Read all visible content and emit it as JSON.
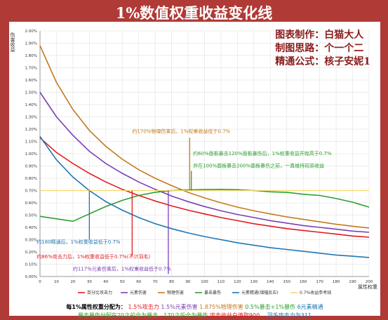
{
  "page": {
    "title": "1%数值权重收益变化线",
    "credits": [
      "图表制作：白猫大人",
      "制图思路：个一个二",
      "精通公式：核子安妮1"
    ],
    "footer": {
      "label": "每1%属性权重分配为：",
      "items": [
        {
          "text": "1.5%攻击力",
          "color": "#e41a1c"
        },
        {
          "text": "1.5%元素伤害",
          "color": "#7b3fb5"
        },
        {
          "text": "1.875%物理伤害",
          "color": "#c47a1e"
        },
        {
          "text": "0.5%暴击+1%暴伤",
          "color": "#2ca02c"
        },
        {
          "text": "6元素精通",
          "color": "#1f77b4"
        }
      ],
      "line2": [
        {
          "text": "暴击暴伤分配在20之前全为暴击，170之后全为暴伤 ",
          "color": "#2ca02c"
        },
        {
          "text": "攻击收益白值取900，",
          "color": "#e41a1c"
        },
        {
          "text": "羽毛攻击力为311",
          "color": "#1f77b4"
        }
      ]
    }
  },
  "chart_data": {
    "type": "line",
    "ylabel": "伤害收益",
    "xlabel": "属性权重",
    "xlim": [
      0,
      200
    ],
    "ylim": [
      0,
      2.0
    ],
    "x_ticks": [
      0,
      10,
      20,
      30,
      40,
      50,
      60,
      70,
      80,
      90,
      100,
      110,
      120,
      130,
      140,
      150,
      160,
      170,
      180,
      190,
      200
    ],
    "y_ticks": [
      0,
      0.1,
      0.2,
      0.3,
      0.4,
      0.5,
      0.6,
      0.7,
      0.8,
      0.9,
      1.0,
      1.1,
      1.2,
      1.3,
      1.4,
      1.5,
      1.6,
      1.7,
      1.8,
      1.9,
      2.0
    ],
    "y_tick_labels": [
      "0.00%",
      "0.10%",
      "0.20%",
      "0.30%",
      "0.40%",
      "0.50%",
      "0.60%",
      "0.70%",
      "0.80%",
      "0.90%",
      "1.00%",
      "1.10%",
      "1.20%",
      "1.30%",
      "1.40%",
      "1.50%",
      "1.60%",
      "1.70%",
      "1.80%",
      "1.90%",
      "2.00%"
    ],
    "grid": true,
    "legend_position": "bottom",
    "x": [
      0,
      10,
      20,
      30,
      40,
      50,
      60,
      70,
      80,
      90,
      100,
      110,
      120,
      130,
      140,
      150,
      160,
      170,
      180,
      190,
      200
    ],
    "series": [
      {
        "name": "百分比攻击力",
        "color": "#e41a1c",
        "values": [
          1.13,
          1.01,
          0.92,
          0.84,
          0.77,
          0.71,
          0.66,
          0.615,
          0.575,
          0.54,
          0.51,
          0.48,
          0.455,
          0.43,
          0.41,
          0.39,
          0.375,
          0.36,
          0.345,
          0.33,
          0.32
        ]
      },
      {
        "name": "元素伤害",
        "color": "#7b3fb5",
        "values": [
          1.5,
          1.3,
          1.15,
          1.02,
          0.92,
          0.84,
          0.77,
          0.71,
          0.655,
          0.61,
          0.57,
          0.535,
          0.505,
          0.48,
          0.455,
          0.435,
          0.415,
          0.4,
          0.385,
          0.37,
          0.36
        ]
      },
      {
        "name": "物理伤害",
        "color": "#c47a1e",
        "values": [
          1.88,
          1.58,
          1.36,
          1.19,
          1.06,
          0.955,
          0.87,
          0.8,
          0.74,
          0.685,
          0.64,
          0.6,
          0.565,
          0.535,
          0.51,
          0.485,
          0.465,
          0.445,
          0.425,
          0.41,
          0.395
        ]
      },
      {
        "name": "暴击暴伤",
        "color": "#2ca02c",
        "values": [
          0.49,
          0.47,
          0.45,
          0.51,
          0.57,
          0.62,
          0.66,
          0.685,
          0.7,
          0.705,
          0.708,
          0.71,
          0.707,
          0.7,
          0.69,
          0.685,
          0.67,
          0.66,
          0.635,
          0.605,
          0.565
        ]
      },
      {
        "name": "元素精通(增幅反应)",
        "color": "#1f77b4",
        "values": [
          1.14,
          0.95,
          0.81,
          0.7,
          0.61,
          0.54,
          0.48,
          0.43,
          0.39,
          0.355,
          0.325,
          0.3,
          0.275,
          0.255,
          0.235,
          0.22,
          0.205,
          0.19,
          0.175,
          0.165,
          0.155
        ]
      },
      {
        "name": "0.7%收益参考线",
        "color": "#f5d76e",
        "values": [
          0.7,
          0.7,
          0.7,
          0.7,
          0.7,
          0.7,
          0.7,
          0.7,
          0.7,
          0.7,
          0.7,
          0.7,
          0.7,
          0.7,
          0.7,
          0.7,
          0.7,
          0.7,
          0.7,
          0.7,
          0.7
        ]
      }
    ],
    "markers": [
      {
        "x": 30,
        "y_from": 0.7,
        "y_to": 0.3,
        "color": "#1f77b4"
      },
      {
        "x": 56,
        "y_from": 0.7,
        "y_to": 0.17,
        "color": "#e41a1c"
      },
      {
        "x": 78,
        "y_from": 0.7,
        "y_to": 0.02,
        "color": "#7b3fb5"
      },
      {
        "x": 91,
        "y_from": 1.13,
        "y_to": 0.7,
        "color": "#c47a1e"
      },
      {
        "x": 92,
        "y_from": 0.86,
        "y_to": 0.7,
        "color": "#2ca02c"
      }
    ],
    "annotations": [
      {
        "text": "约170%物理伤害后，1%权重收益低于0.7%",
        "color": "#c47a1e",
        "x": 56,
        "y": 1.17
      },
      {
        "text": "约60%面板暴击120%面板暴伤后，1%权重收益开始高于0.7%",
        "color": "#2ca02c",
        "x": 93,
        "y": 0.99
      },
      {
        "text": "并在100%面板暴击200%面板暴伤之前，一直维持较高收益",
        "color": "#2ca02c",
        "x": 93,
        "y": 0.89
      },
      {
        "text": "约180精通后，1%权重收益低于0.7%",
        "color": "#1f77b4",
        "x": -2,
        "y": 0.27
      },
      {
        "text": "约86%攻击力后，1%权重收益低于0.7%(不计羽毛)",
        "color": "#e41a1c",
        "x": -2,
        "y": 0.15
      },
      {
        "text": "约117%元素伤害后，1%权重收益低于0.7%",
        "color": "#7b3fb5",
        "x": 20,
        "y": 0.05
      }
    ]
  }
}
